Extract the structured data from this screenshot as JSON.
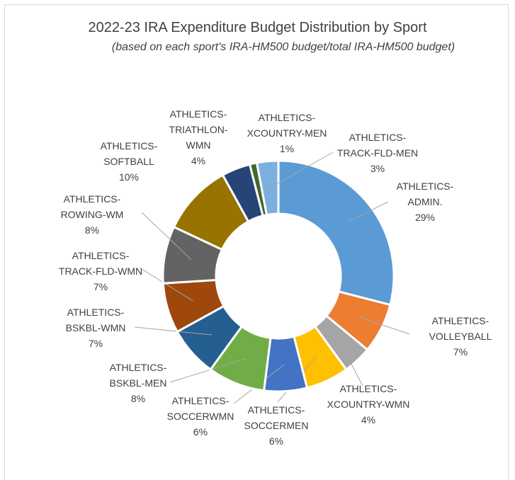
{
  "chart_data": {
    "type": "donut",
    "title": "2022-23 IRA Expenditure Budget Distribution by Sport",
    "subtitle": "(based on each sport's IRA-HM500 budget/total IRA-HM500 budget)",
    "categories": [
      "ATHLETICS-ADMIN.",
      "ATHLETICS-VOLLEYBALL",
      "ATHLETICS-XCOUNTRY-WMN",
      "ATHLETICS-SOCCERMEN",
      "ATHLETICS-SOCCERWMN",
      "ATHLETICS-BSKBL-MEN",
      "ATHLETICS-BSKBL-WMN",
      "ATHLETICS-TRACK-FLD-WMN",
      "ATHLETICS-ROWING-WM",
      "ATHLETICS-SOFTBALL",
      "ATHLETICS-TRIATHLON-WMN",
      "ATHLETICS-XCOUNTRY-MEN",
      "ATHLETICS-TRACK-FLD-MEN"
    ],
    "values": [
      29,
      7,
      4,
      6,
      6,
      8,
      7,
      7,
      8,
      10,
      4,
      1,
      3
    ],
    "value_labels": [
      "29%",
      "7%",
      "4%",
      "6%",
      "6%",
      "8%",
      "7%",
      "7%",
      "8%",
      "10%",
      "4%",
      "1%",
      "3%"
    ],
    "colors": [
      "#5b9bd5",
      "#ed7d31",
      "#a5a5a5",
      "#ffc000",
      "#4472c4",
      "#70ad47",
      "#255e91",
      "#9e480e",
      "#636363",
      "#997300",
      "#264478",
      "#43682b",
      "#7cafdd"
    ]
  }
}
